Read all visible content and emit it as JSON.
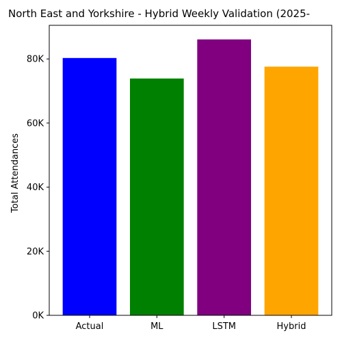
{
  "chart_data": {
    "type": "bar",
    "title": "North East and Yorkshire - Hybrid Weekly Validation (2025-",
    "xlabel": "",
    "ylabel": "Total Attendances",
    "categories": [
      "Actual",
      "ML",
      "LSTM",
      "Hybrid"
    ],
    "values": [
      80300,
      73900,
      86100,
      77600
    ],
    "colors": [
      "#0000ff",
      "#008000",
      "#800080",
      "#ffa500"
    ],
    "ylim": [
      0,
      90500
    ],
    "yticks": [
      0,
      20000,
      40000,
      60000,
      80000
    ],
    "ytick_labels": [
      "0K",
      "20K",
      "40K",
      "60K",
      "80K"
    ],
    "grid": false,
    "legend": "none"
  }
}
